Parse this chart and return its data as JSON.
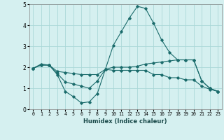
{
  "title": "",
  "xlabel": "Humidex (Indice chaleur)",
  "ylabel": "",
  "bg_color": "#d5f0f0",
  "grid_color": "#aad8d8",
  "line_color": "#1a6b6b",
  "xlim": [
    -0.5,
    23.5
  ],
  "ylim": [
    0,
    5
  ],
  "xticks": [
    0,
    1,
    2,
    3,
    4,
    5,
    6,
    7,
    8,
    9,
    10,
    11,
    12,
    13,
    14,
    15,
    16,
    17,
    18,
    19,
    20,
    21,
    22,
    23
  ],
  "yticks": [
    0,
    1,
    2,
    3,
    4,
    5
  ],
  "line1_x": [
    0,
    1,
    2,
    3,
    4,
    5,
    6,
    7,
    8,
    9,
    10,
    11,
    12,
    13,
    14,
    15,
    16,
    17,
    18,
    19,
    20,
    21,
    22,
    23
  ],
  "line1_y": [
    1.95,
    2.15,
    2.1,
    1.65,
    0.85,
    0.6,
    0.3,
    0.35,
    0.75,
    1.9,
    3.05,
    3.7,
    4.35,
    4.9,
    4.8,
    4.1,
    3.3,
    2.7,
    2.35,
    2.35,
    2.35,
    1.35,
    1.0,
    0.85
  ],
  "line2_x": [
    0,
    1,
    2,
    3,
    4,
    5,
    6,
    7,
    8,
    9,
    10,
    11,
    12,
    13,
    14,
    15,
    16,
    17,
    18,
    19,
    20,
    21,
    22,
    23
  ],
  "line2_y": [
    1.95,
    2.1,
    2.1,
    1.7,
    1.3,
    1.2,
    1.1,
    1.0,
    1.35,
    1.9,
    1.85,
    1.85,
    1.85,
    1.85,
    1.85,
    1.65,
    1.65,
    1.5,
    1.5,
    1.4,
    1.4,
    1.1,
    0.95,
    0.85
  ],
  "line3_x": [
    0,
    1,
    2,
    3,
    4,
    5,
    6,
    7,
    8,
    9,
    10,
    11,
    12,
    13,
    14,
    15,
    16,
    17,
    18,
    19,
    20,
    21,
    22,
    23
  ],
  "line3_y": [
    1.95,
    2.1,
    2.1,
    1.8,
    1.75,
    1.7,
    1.65,
    1.65,
    1.65,
    1.9,
    2.0,
    2.0,
    2.0,
    2.05,
    2.15,
    2.2,
    2.25,
    2.3,
    2.35,
    2.35,
    2.35,
    1.35,
    1.0,
    0.85
  ]
}
